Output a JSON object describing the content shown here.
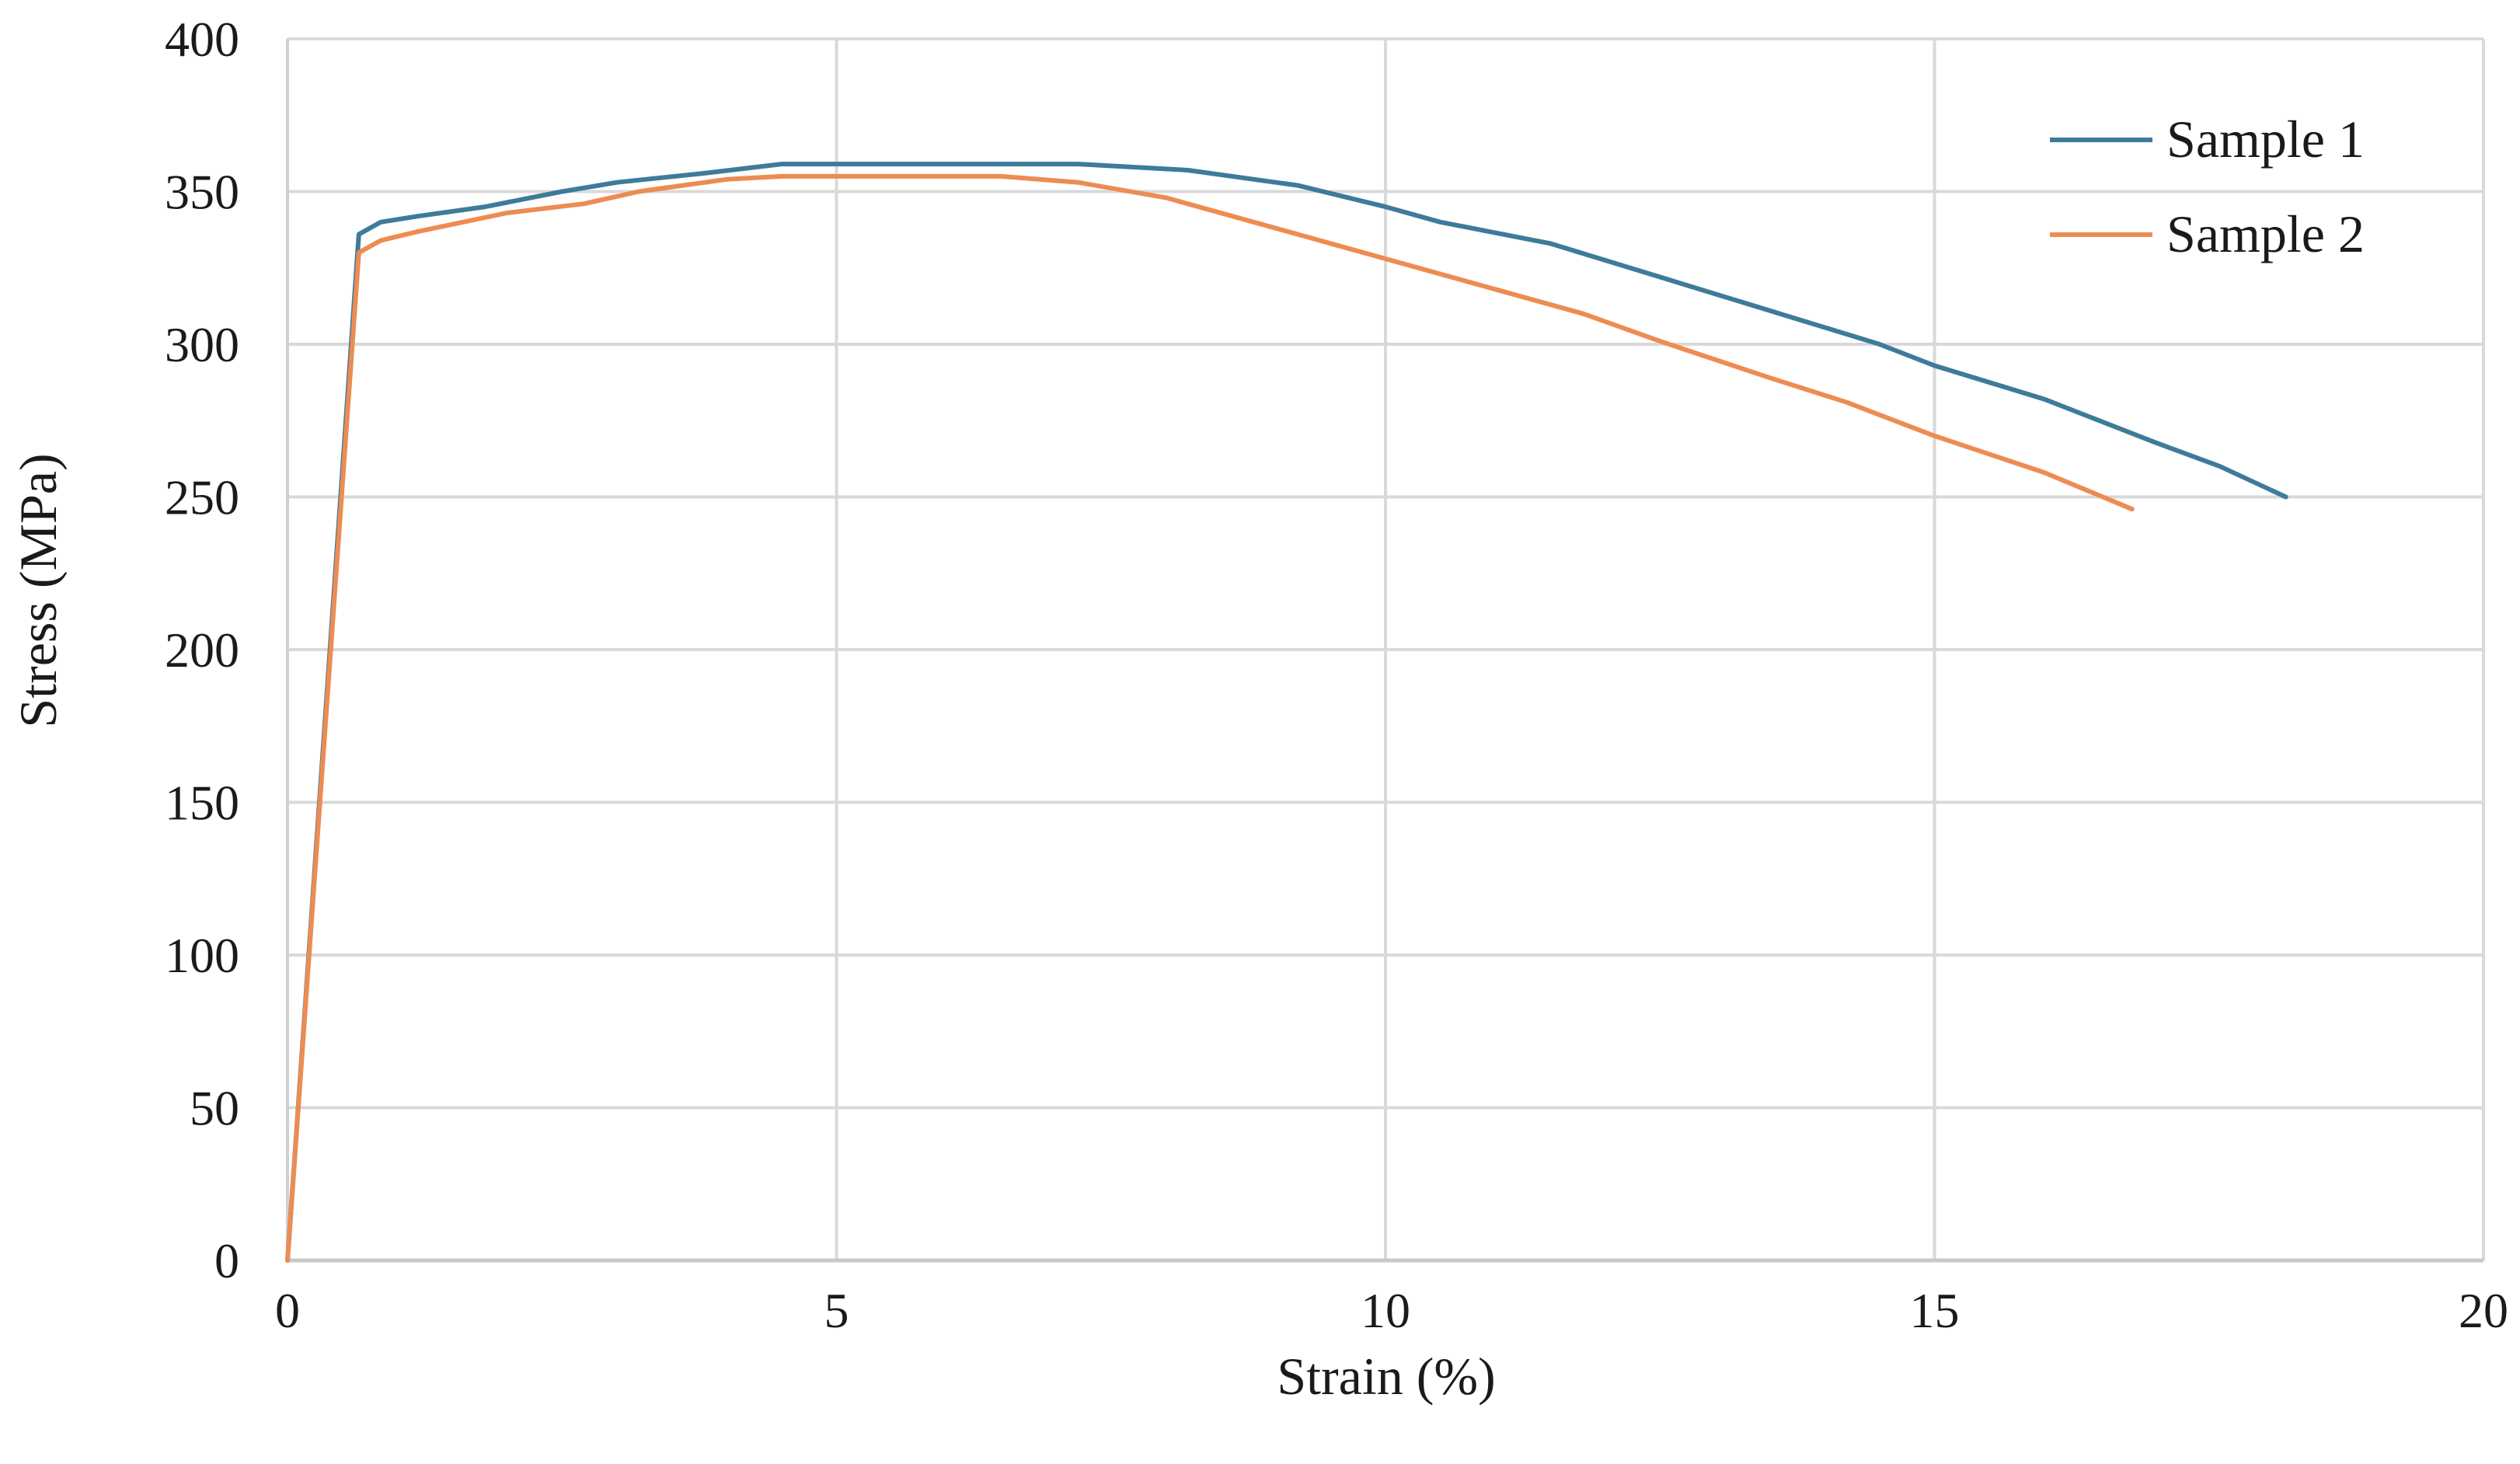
{
  "chart_data": {
    "type": "line",
    "title": "",
    "xlabel": "Strain (%)",
    "ylabel": "Stress (MPa)",
    "xlim": [
      0,
      20
    ],
    "ylim": [
      0,
      400
    ],
    "xticks": [
      0,
      5,
      10,
      15,
      20
    ],
    "yticks": [
      0,
      50,
      100,
      150,
      200,
      250,
      300,
      350,
      400
    ],
    "grid": true,
    "legend_position": "top-right",
    "series": [
      {
        "name": "Sample 1",
        "color": "#3e7b9a",
        "points": [
          [
            0,
            0
          ],
          [
            0.65,
            336
          ],
          [
            0.85,
            340
          ],
          [
            1.2,
            342
          ],
          [
            1.8,
            345
          ],
          [
            2.5,
            350
          ],
          [
            3.0,
            353
          ],
          [
            3.8,
            356
          ],
          [
            4.5,
            359
          ],
          [
            5.5,
            359
          ],
          [
            6.5,
            359
          ],
          [
            7.2,
            359
          ],
          [
            8.2,
            357
          ],
          [
            9.2,
            352
          ],
          [
            10.0,
            345
          ],
          [
            10.5,
            340
          ],
          [
            11.5,
            333
          ],
          [
            12.5,
            322
          ],
          [
            13.5,
            311
          ],
          [
            14.5,
            300
          ],
          [
            15.0,
            293
          ],
          [
            16.0,
            282
          ],
          [
            17.0,
            268
          ],
          [
            17.6,
            260
          ],
          [
            18.2,
            250
          ]
        ]
      },
      {
        "name": "Sample 2",
        "color": "#ed8c52",
        "points": [
          [
            0,
            0
          ],
          [
            0.65,
            330
          ],
          [
            0.85,
            334
          ],
          [
            1.2,
            337
          ],
          [
            2.0,
            343
          ],
          [
            2.7,
            346
          ],
          [
            3.2,
            350
          ],
          [
            4.0,
            354
          ],
          [
            4.5,
            355
          ],
          [
            5.5,
            355
          ],
          [
            6.5,
            355
          ],
          [
            7.2,
            353
          ],
          [
            8.0,
            348
          ],
          [
            9.0,
            338
          ],
          [
            10.0,
            328
          ],
          [
            11.0,
            318
          ],
          [
            11.8,
            310
          ],
          [
            12.5,
            301
          ],
          [
            13.5,
            289
          ],
          [
            14.2,
            281
          ],
          [
            15.0,
            270
          ],
          [
            16.0,
            258
          ],
          [
            16.8,
            246
          ]
        ]
      }
    ]
  }
}
